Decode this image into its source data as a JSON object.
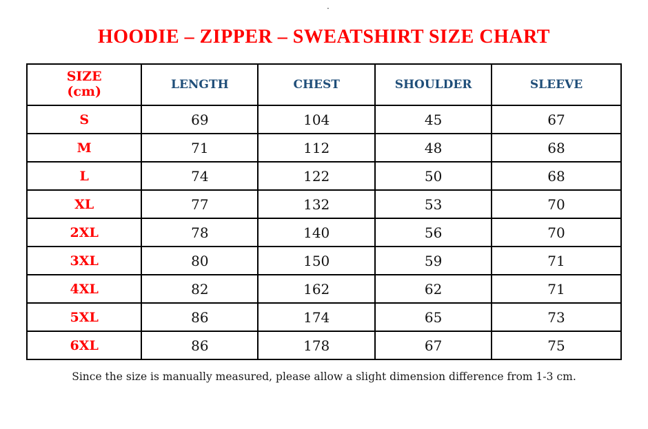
{
  "page": {
    "stray_dot": ".",
    "title": "HOODIE – ZIPPER – SWEATSHIRT SIZE CHART",
    "footnote": "Since the size is manually measured, please allow a slight dimension difference from 1-3 cm."
  },
  "table": {
    "headers": {
      "size": "SIZE\n(cm)",
      "length": "LENGTH",
      "chest": "CHEST",
      "shoulder": "SHOULDER",
      "sleeve": "SLEEVE"
    },
    "rows": [
      {
        "size": "S",
        "values": [
          "69",
          "104",
          "45",
          "67"
        ]
      },
      {
        "size": "M",
        "values": [
          "71",
          "112",
          "48",
          "68"
        ]
      },
      {
        "size": "L",
        "values": [
          "74",
          "122",
          "50",
          "68"
        ]
      },
      {
        "size": "XL",
        "values": [
          "77",
          "132",
          "53",
          "70"
        ]
      },
      {
        "size": "2XL",
        "values": [
          "78",
          "140",
          "56",
          "70"
        ]
      },
      {
        "size": "3XL",
        "values": [
          "80",
          "150",
          "59",
          "71"
        ]
      },
      {
        "size": "4XL",
        "values": [
          "82",
          "162",
          "62",
          "71"
        ]
      },
      {
        "size": "5XL",
        "values": [
          "86",
          "174",
          "65",
          "73"
        ]
      },
      {
        "size": "6XL",
        "values": [
          "86",
          "178",
          "67",
          "75"
        ]
      }
    ]
  },
  "colors": {
    "title_red": "#ff0000",
    "header_navy": "#1f4e79",
    "body_text": "#111111",
    "border": "#000000",
    "background": "#ffffff"
  },
  "chart_data": {
    "type": "table",
    "title": "HOODIE – ZIPPER – SWEATSHIRT SIZE CHART",
    "unit": "cm",
    "columns": [
      "SIZE (cm)",
      "LENGTH",
      "CHEST",
      "SHOULDER",
      "SLEEVE"
    ],
    "rows": [
      [
        "S",
        69,
        104,
        45,
        67
      ],
      [
        "M",
        71,
        112,
        48,
        68
      ],
      [
        "L",
        74,
        122,
        50,
        68
      ],
      [
        "XL",
        77,
        132,
        53,
        70
      ],
      [
        "2XL",
        78,
        140,
        56,
        70
      ],
      [
        "3XL",
        80,
        150,
        59,
        71
      ],
      [
        "4XL",
        82,
        162,
        62,
        71
      ],
      [
        "5XL",
        86,
        174,
        65,
        73
      ],
      [
        "6XL",
        86,
        178,
        67,
        75
      ]
    ],
    "note": "Since the size is manually measured, please allow a slight dimension difference from 1-3 cm."
  }
}
